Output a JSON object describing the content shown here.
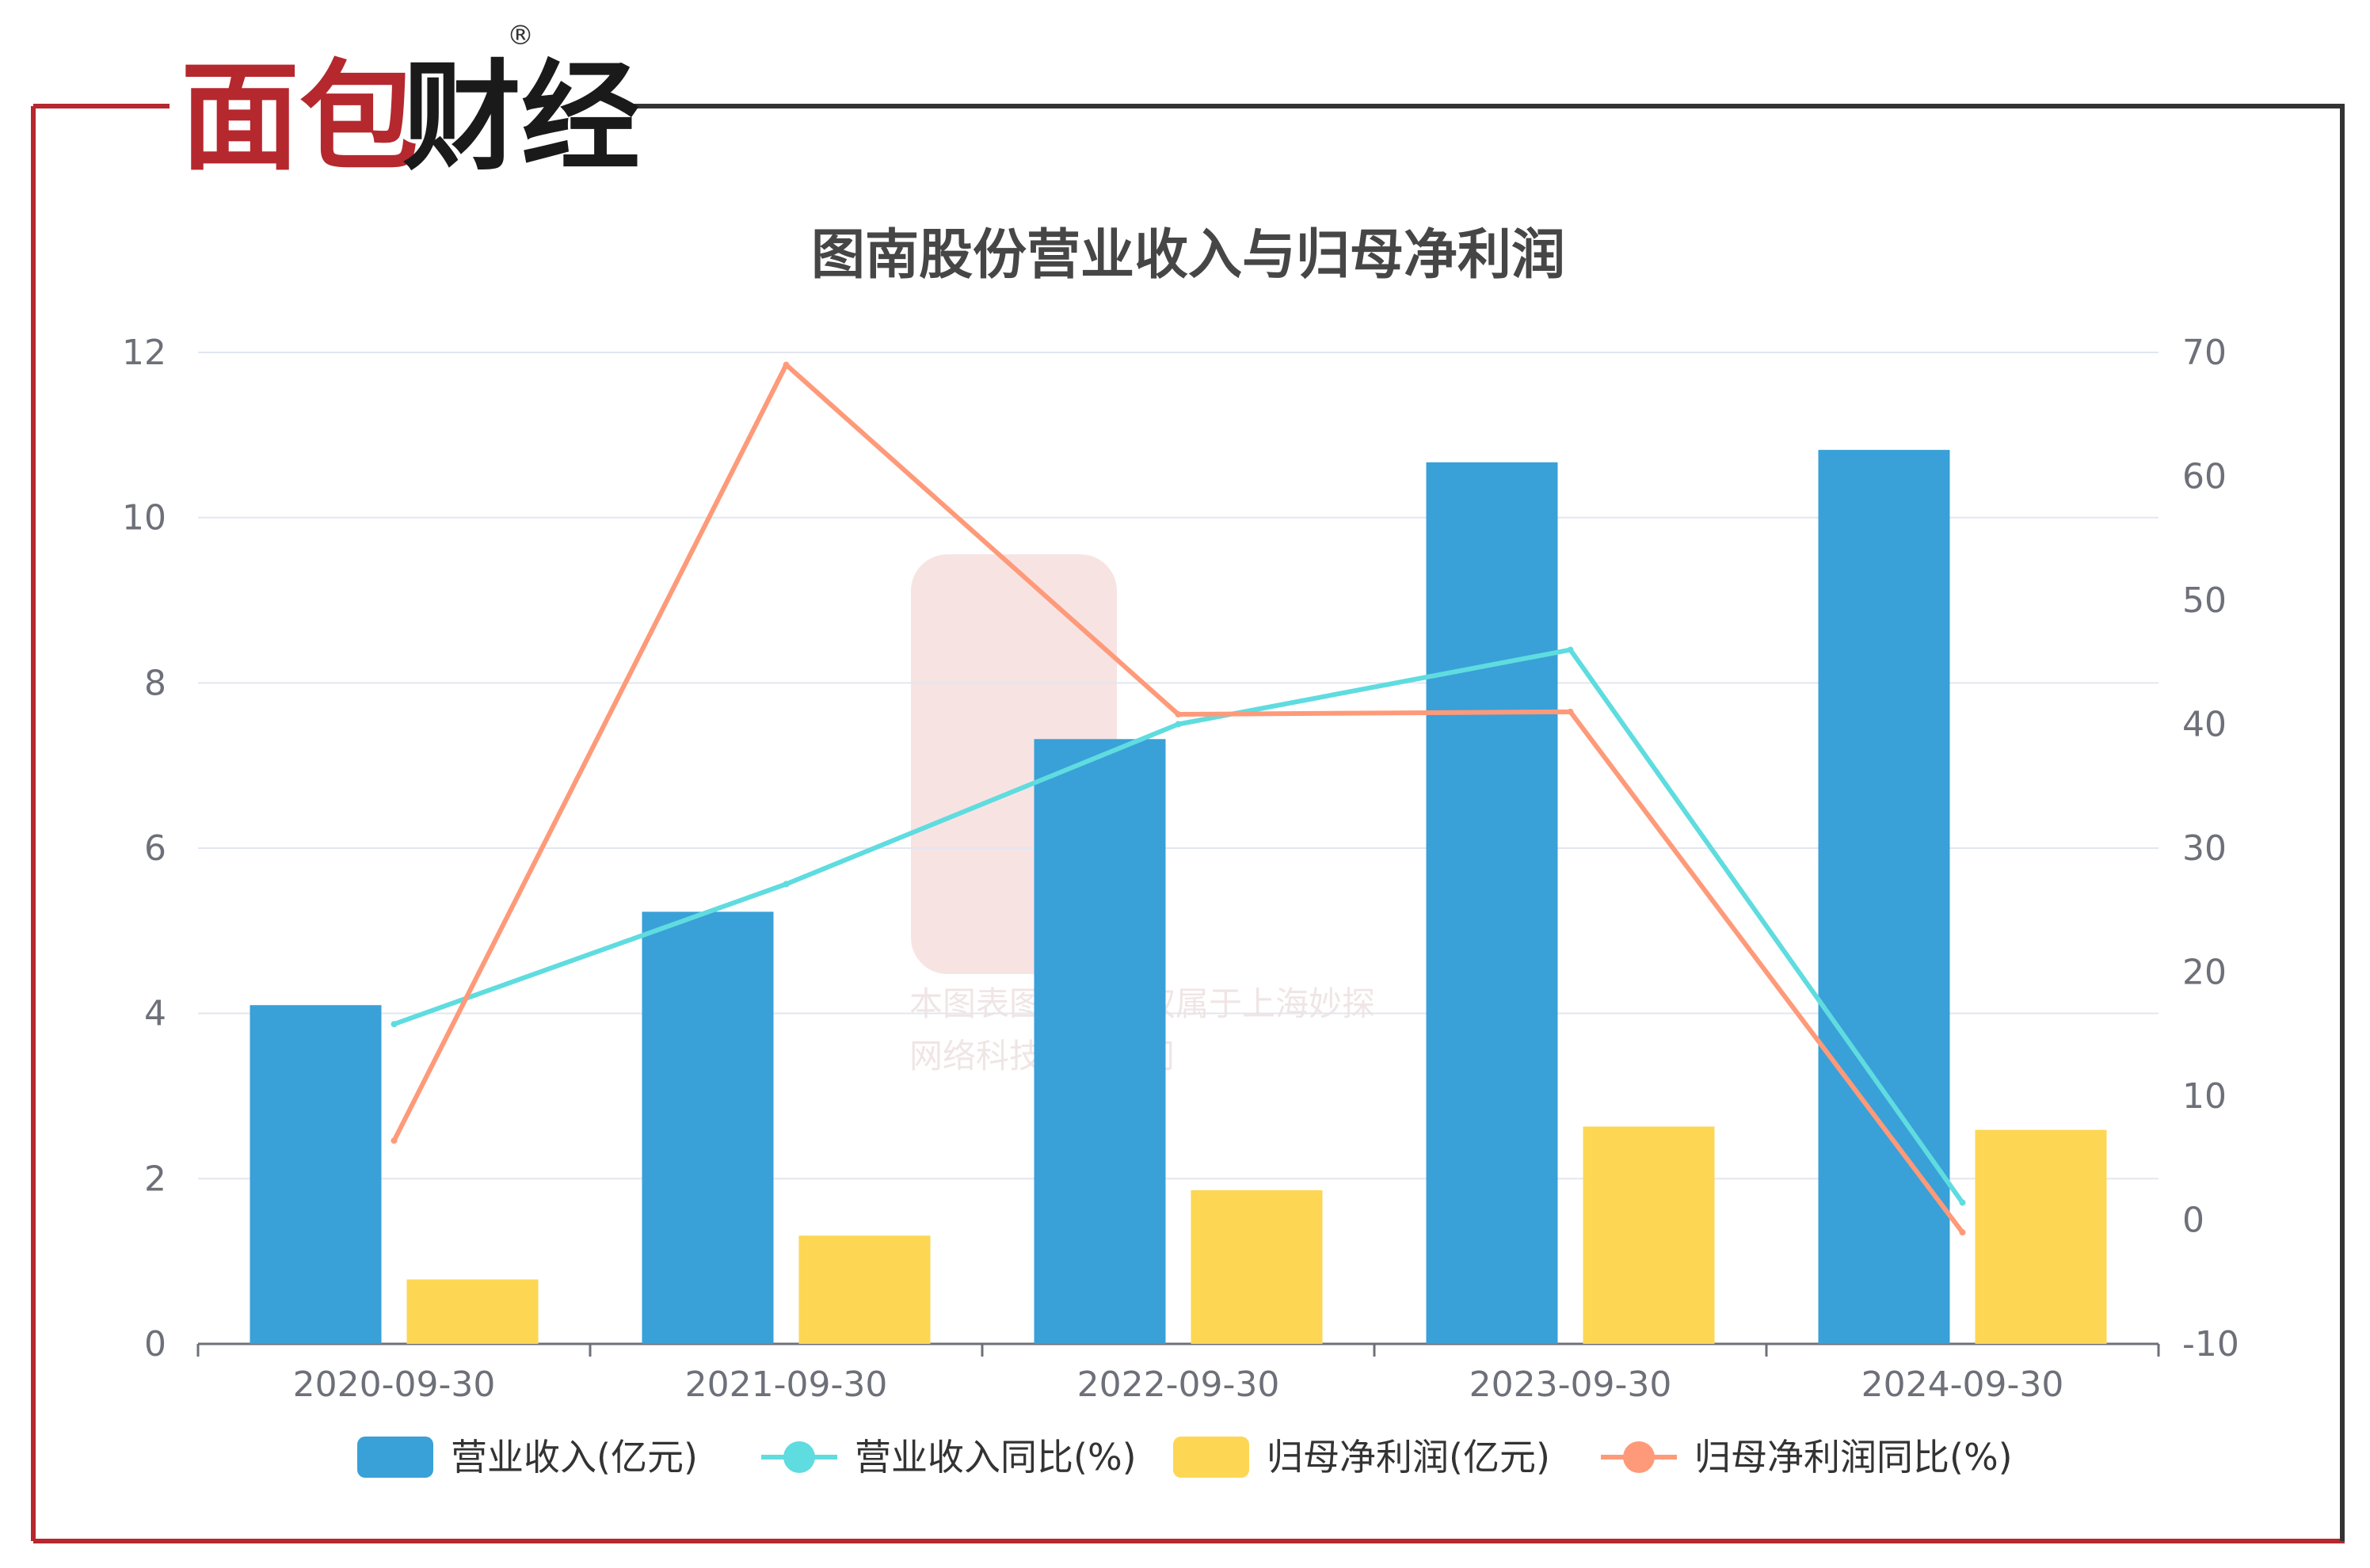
{
  "brand": {
    "logo_red": "面包",
    "logo_black": "财经",
    "registered_mark": "®"
  },
  "watermark": {
    "line1": "本图表图片著作权属于上海妙探",
    "line2": "网络科技有限公司"
  },
  "colors": {
    "frame_red": "#b5282e",
    "frame_dark": "#333333",
    "revenue": "#3aa0d8",
    "revenue_yoy": "#5fdcdf",
    "profit": "#fdd654",
    "profit_yoy": "#fe9a79",
    "grid": "#e3e6f0",
    "axis": "#6e7079"
  },
  "chart_data": {
    "type": "bar",
    "title": "图南股份营业收入与归母净利润",
    "categories": [
      "2020-09-30",
      "2021-09-30",
      "2022-09-30",
      "2023-09-30",
      "2024-09-30"
    ],
    "y_left": {
      "min": 0,
      "max": 12,
      "ticks": [
        "0",
        "2",
        "4",
        "6",
        "8",
        "10",
        "12"
      ]
    },
    "y_right": {
      "min": -10,
      "max": 70,
      "ticks": [
        "-10",
        "0",
        "10",
        "20",
        "30",
        "40",
        "50",
        "60",
        "70"
      ]
    },
    "grid": true,
    "legend_position": "bottom",
    "series": [
      {
        "name": "营业收入(亿元)",
        "type": "bar",
        "axis": "left",
        "color": "#3aa0d8",
        "values": [
          4.1,
          5.23,
          7.32,
          10.67,
          10.82
        ]
      },
      {
        "name": "营业收入同比(%)",
        "type": "line",
        "axis": "right",
        "color": "#5fdcdf",
        "values": [
          15.8,
          27.1,
          40.0,
          46.0,
          1.4
        ]
      },
      {
        "name": "归母净利润(亿元)",
        "type": "bar",
        "axis": "left",
        "color": "#fdd654",
        "values": [
          0.78,
          1.31,
          1.86,
          2.63,
          2.59
        ]
      },
      {
        "name": "归母净利润同比(%)",
        "type": "line",
        "axis": "right",
        "color": "#fe9a79",
        "values": [
          6.4,
          69.0,
          40.8,
          41.0,
          -1.0
        ]
      }
    ]
  }
}
